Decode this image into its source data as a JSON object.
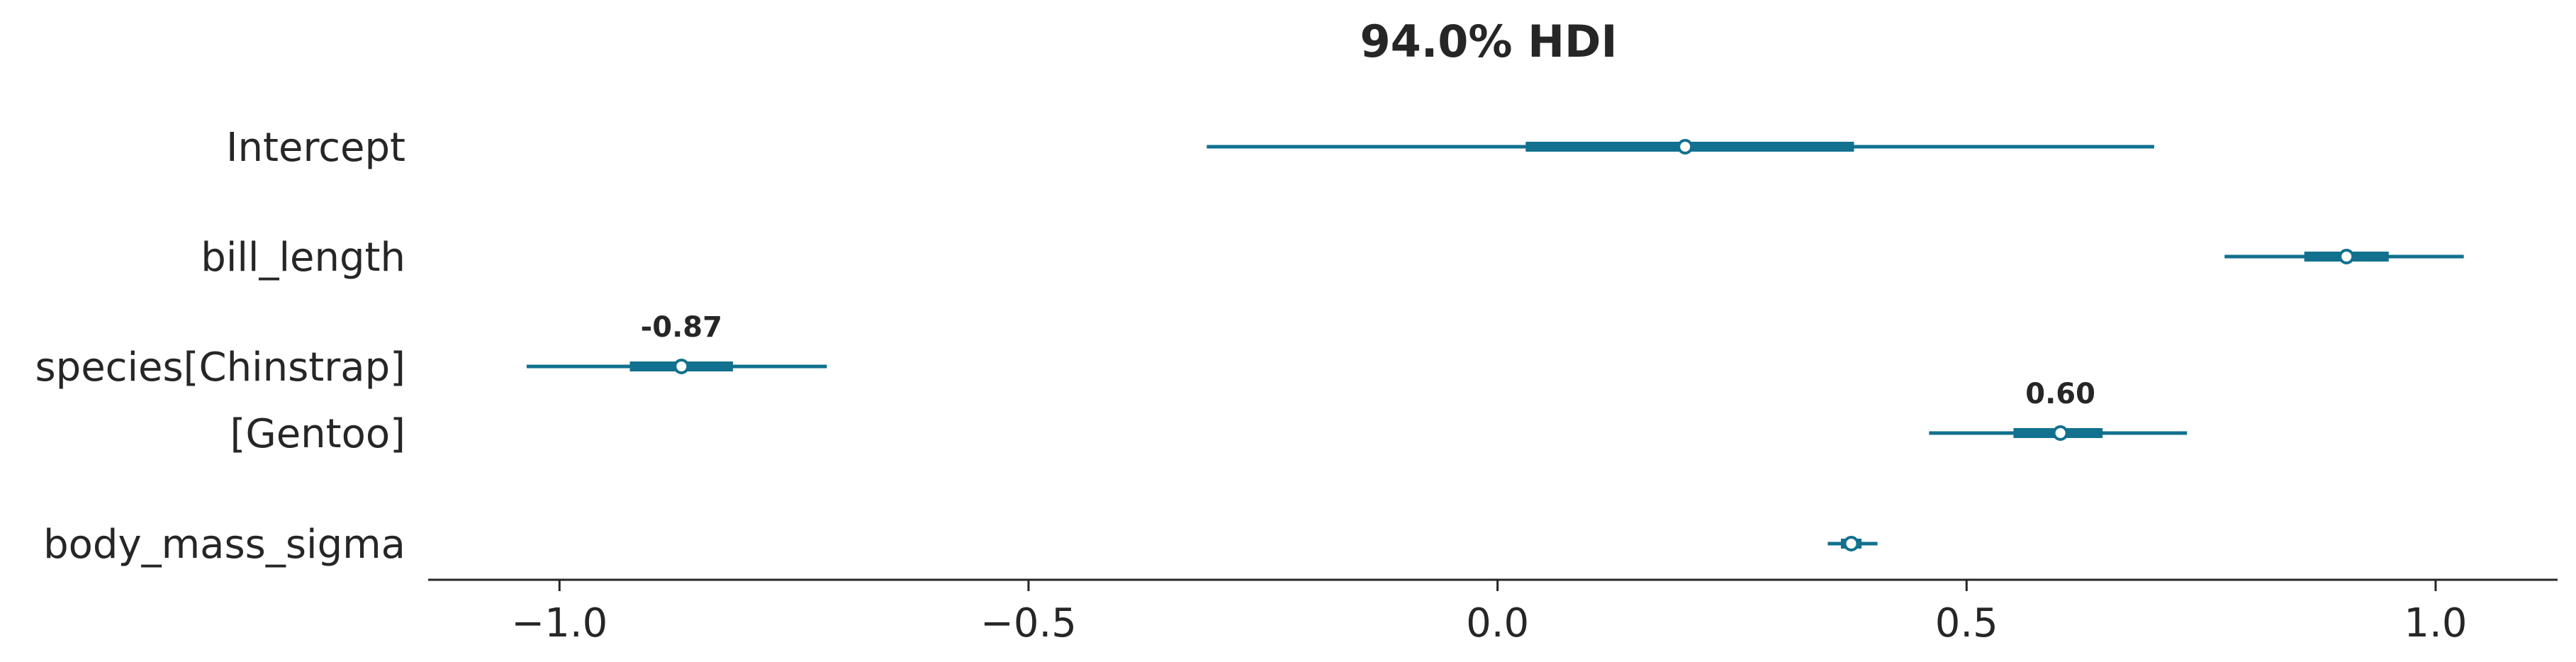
{
  "chart_data": {
    "type": "forest",
    "title": "94.0% HDI",
    "color": "#11718f",
    "xlim": [
      -1.14,
      1.13
    ],
    "xticks": [
      {
        "value": -1.0,
        "label": "−1.0"
      },
      {
        "value": -0.5,
        "label": "−0.5"
      },
      {
        "value": 0.0,
        "label": "0.0"
      },
      {
        "value": 0.5,
        "label": "0.5"
      },
      {
        "value": 1.0,
        "label": "1.0"
      }
    ],
    "rows": [
      {
        "label": "Intercept",
        "mean": 0.2,
        "hdi94": [
          -0.31,
          0.7
        ],
        "iqr": [
          0.03,
          0.38
        ],
        "annotation": ""
      },
      {
        "label": "bill_length",
        "mean": 0.905,
        "hdi94": [
          0.775,
          1.03
        ],
        "iqr": [
          0.86,
          0.95
        ],
        "annotation": ""
      },
      {
        "label": "species[Chinstrap]",
        "mean": -0.87,
        "hdi94": [
          -1.035,
          -0.715
        ],
        "iqr": [
          -0.925,
          -0.815
        ],
        "annotation": "-0.87"
      },
      {
        "label": "[Gentoo]",
        "mean": 0.6,
        "hdi94": [
          0.46,
          0.735
        ],
        "iqr": [
          0.55,
          0.645
        ],
        "annotation": "0.60"
      },
      {
        "label": "body_mass_sigma",
        "mean": 0.377,
        "hdi94": [
          0.352,
          0.405
        ],
        "iqr": [
          0.366,
          0.388
        ],
        "annotation": ""
      }
    ]
  }
}
